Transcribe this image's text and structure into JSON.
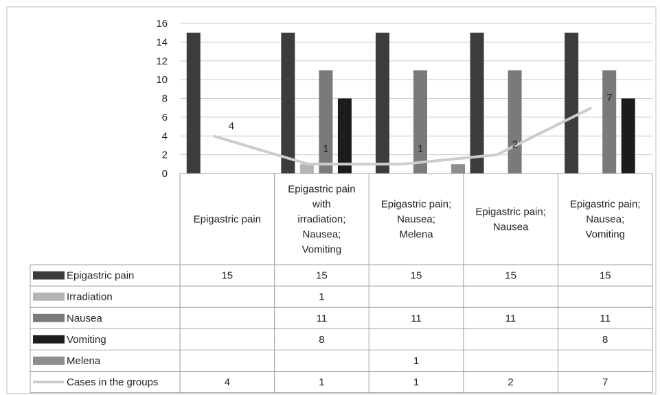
{
  "chart_data": {
    "type": "bar",
    "categories": [
      [
        "Epigastric pain"
      ],
      [
        "Epigastric pain",
        "with",
        "irradiation;",
        "Nausea;",
        "Vomiting"
      ],
      [
        "Epigastric pain;",
        "Nausea;",
        "Melena"
      ],
      [
        "Epigastric pain;",
        "Nausea"
      ],
      [
        "Epigastric pain;",
        "Nausea;",
        "Vomiting"
      ]
    ],
    "ylim": [
      0,
      16
    ],
    "yticks": [
      0,
      2,
      4,
      6,
      8,
      10,
      12,
      14,
      16
    ],
    "grid": true,
    "legend": "data-table",
    "series": [
      {
        "name": "Epigastric pain",
        "kind": "bar",
        "color": "#3c3c3c",
        "values": [
          15,
          15,
          15,
          15,
          15
        ]
      },
      {
        "name": "Irradiation",
        "kind": "bar",
        "color": "#b4b4b4",
        "values": [
          null,
          1,
          null,
          null,
          null
        ]
      },
      {
        "name": "Nausea",
        "kind": "bar",
        "color": "#7a7a7a",
        "values": [
          null,
          11,
          11,
          11,
          11
        ]
      },
      {
        "name": "Vomiting",
        "kind": "bar",
        "color": "#1c1c1c",
        "values": [
          null,
          8,
          null,
          null,
          8
        ]
      },
      {
        "name": "Melena",
        "kind": "bar",
        "color": "#8e8e8e",
        "values": [
          null,
          null,
          1,
          null,
          null
        ]
      },
      {
        "name": "Cases in the groups",
        "kind": "line",
        "color": "#cccccc",
        "values": [
          4,
          1,
          1,
          2,
          7
        ]
      }
    ]
  }
}
